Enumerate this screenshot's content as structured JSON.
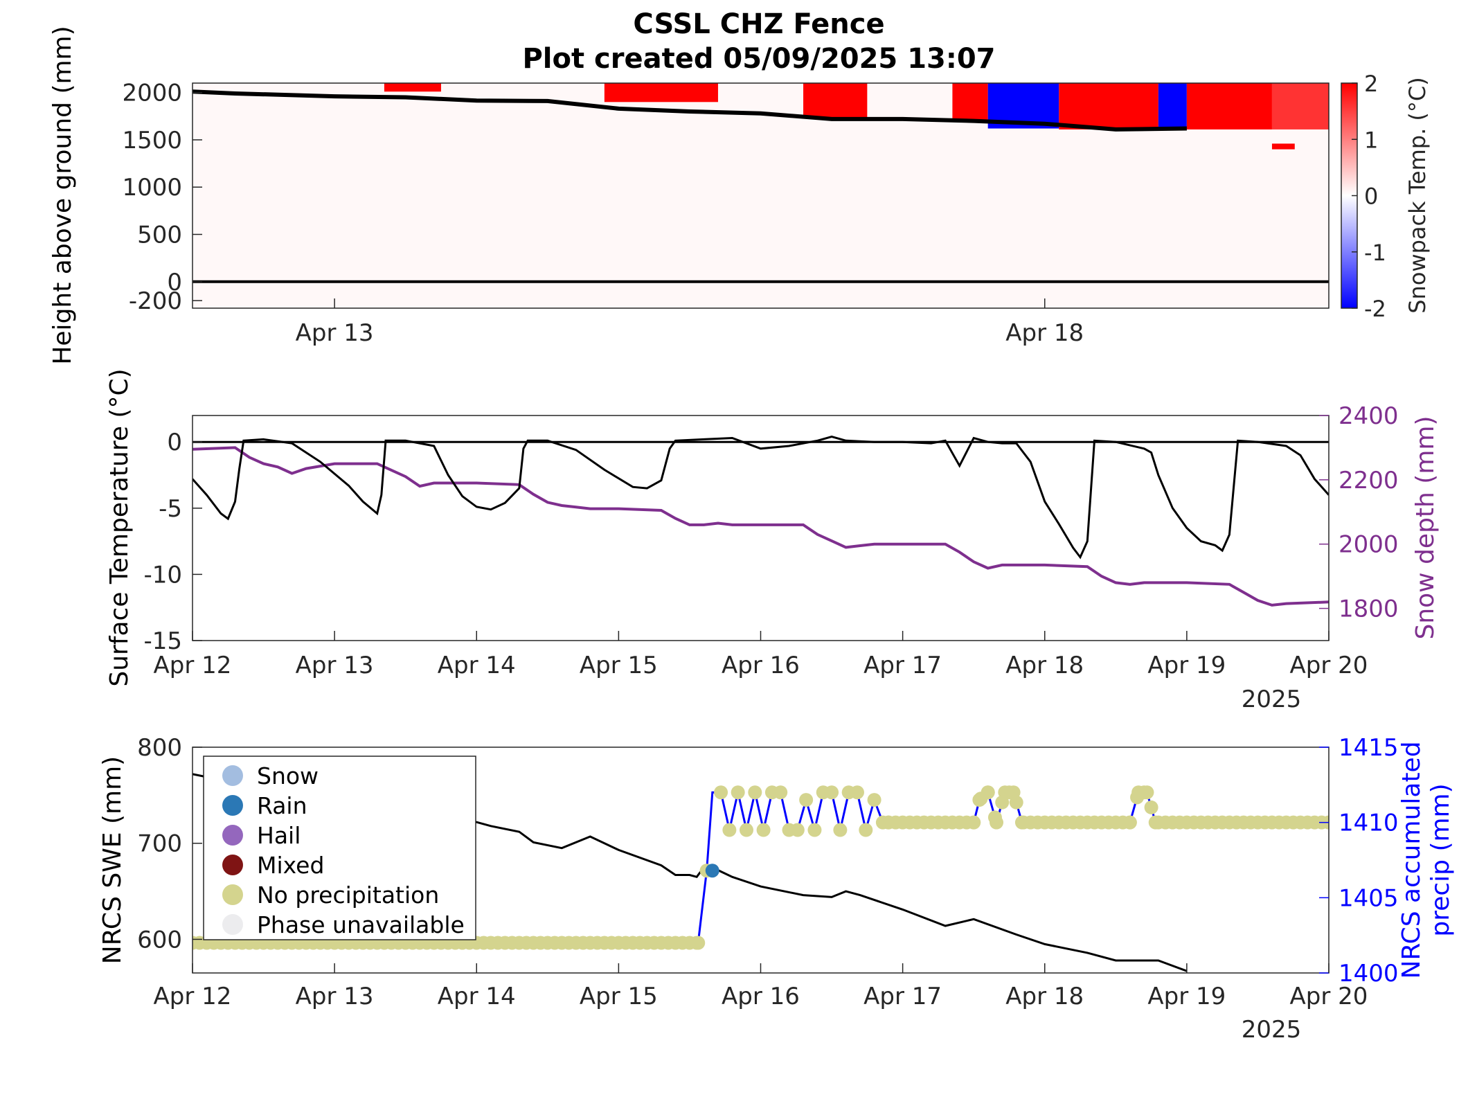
{
  "title": {
    "line1": "CSSL CHZ Fence",
    "line2": "Plot created 05/09/2025 13:07"
  },
  "colors": {
    "temp_line": "#000000",
    "snow_depth": "#7e2f8e",
    "precip_line": "#0000ff",
    "swe_line": "#000000",
    "cmap_warm": "#ff0000",
    "cmap_cold": "#0000ff",
    "cmap_zero": "#ffffff"
  },
  "chart_data": [
    {
      "type": "heatmap",
      "ylabel": "Height above ground (mm)",
      "ylim": [
        -280,
        2100
      ],
      "yticks": [
        2000,
        1500,
        1000,
        500,
        0,
        -200
      ],
      "xticks": [
        "Apr 13",
        "Apr 18"
      ],
      "xtick_days": [
        1,
        6
      ],
      "xlim_days": [
        0,
        8
      ],
      "colorbar": {
        "label": "Snowpack Temp. (°C)",
        "range": [
          -2,
          2
        ],
        "ticks": [
          "2",
          "1",
          "0",
          "-1",
          "-2"
        ]
      },
      "snow_surface_height": {
        "days": [
          0,
          0.3,
          1.0,
          1.5,
          2.0,
          2.5,
          3.0,
          3.5,
          4.0,
          4.5,
          5.0,
          5.5,
          6.0,
          6.5,
          7.0
        ],
        "values": [
          2010,
          1990,
          1960,
          1950,
          1915,
          1910,
          1830,
          1800,
          1780,
          1720,
          1720,
          1700,
          1670,
          1610,
          1620
        ]
      },
      "warm_layer_blocks": [
        {
          "day_start": 1.35,
          "day_end": 1.75,
          "z_top": 2100,
          "z_bottom": 2010,
          "temp": 2
        },
        {
          "day_start": 2.9,
          "day_end": 3.7,
          "z_top": 2100,
          "z_bottom": 1900,
          "temp": 2
        },
        {
          "day_start": 4.3,
          "day_end": 4.75,
          "z_top": 2100,
          "z_bottom": 1730,
          "temp": 2
        },
        {
          "day_start": 5.35,
          "day_end": 5.6,
          "z_top": 2100,
          "z_bottom": 1700,
          "temp": 2
        },
        {
          "day_start": 5.6,
          "day_end": 6.1,
          "z_top": 2100,
          "z_bottom": 1620,
          "temp": -2
        },
        {
          "day_start": 6.1,
          "day_end": 6.8,
          "z_top": 2100,
          "z_bottom": 1610,
          "temp": 2
        },
        {
          "day_start": 6.8,
          "day_end": 7.0,
          "z_top": 2100,
          "z_bottom": 1610,
          "temp": -2
        },
        {
          "day_start": 7.0,
          "day_end": 7.6,
          "z_top": 2100,
          "z_bottom": 1610,
          "temp": 2
        },
        {
          "day_start": 7.6,
          "day_end": 8.0,
          "z_top": 2100,
          "z_bottom": 1610,
          "temp": 1.6
        },
        {
          "day_start": 7.6,
          "day_end": 7.76,
          "z_top": 1460,
          "z_bottom": 1400,
          "temp": 2
        }
      ],
      "ground_line_height": 0
    },
    {
      "type": "line",
      "ylabel": "Surface Temperature (°C)",
      "ylabel_right": "Snow depth (mm)",
      "ylim": [
        -15,
        2
      ],
      "yticks": [
        0,
        -5,
        -10,
        -15
      ],
      "ylim_right": [
        1700,
        2400
      ],
      "yticks_right": [
        2400,
        2200,
        2000,
        1800
      ],
      "xticks": [
        "Apr 12",
        "Apr 13",
        "Apr 14",
        "Apr 15",
        "Apr 16",
        "Apr 17",
        "Apr 18",
        "Apr 19",
        "Apr 20"
      ],
      "year_label": "2025",
      "xlim_days": [
        0,
        8
      ],
      "zero_line": 0,
      "series": [
        {
          "axis": "left",
          "days": [
            0,
            0.1,
            0.2,
            0.25,
            0.3,
            0.33,
            0.36,
            0.5,
            0.7,
            0.9,
            1.1,
            1.2,
            1.3,
            1.33,
            1.36,
            1.5,
            1.7,
            1.8,
            1.9,
            2.0,
            2.1,
            2.2,
            2.3,
            2.33,
            2.36,
            2.5,
            2.7,
            2.9,
            3.1,
            3.2,
            3.3,
            3.36,
            3.4,
            3.6,
            3.8,
            4.0,
            4.2,
            4.4,
            4.5,
            4.6,
            4.8,
            5.0,
            5.2,
            5.3,
            5.4,
            5.5,
            5.6,
            5.7,
            5.8,
            5.9,
            6.0,
            6.1,
            6.2,
            6.25,
            6.3,
            6.35,
            6.5,
            6.7,
            6.75,
            6.8,
            6.9,
            7.0,
            7.1,
            7.2,
            7.25,
            7.3,
            7.36,
            7.5,
            7.7,
            7.8,
            7.9,
            8.0
          ],
          "values": [
            -2.8,
            -4.0,
            -5.4,
            -5.8,
            -4.5,
            -2.0,
            0.1,
            0.2,
            -0.1,
            -1.5,
            -3.3,
            -4.5,
            -5.4,
            -4.0,
            0.1,
            0.1,
            -0.3,
            -2.5,
            -4.1,
            -4.9,
            -5.1,
            -4.6,
            -3.5,
            -0.5,
            0.1,
            0.1,
            -0.6,
            -2.1,
            -3.4,
            -3.5,
            -2.9,
            -0.5,
            0.1,
            0.2,
            0.3,
            -0.5,
            -0.3,
            0.1,
            0.4,
            0.1,
            0.0,
            0.0,
            -0.1,
            0.1,
            -1.8,
            0.3,
            0.0,
            -0.1,
            -0.1,
            -1.5,
            -4.5,
            -6.2,
            -8.0,
            -8.7,
            -7.5,
            0.1,
            0.0,
            -0.5,
            -0.8,
            -2.5,
            -5.0,
            -6.5,
            -7.5,
            -7.8,
            -8.2,
            -7.0,
            0.1,
            0.0,
            -0.3,
            -1.0,
            -2.8,
            -4.0
          ]
        },
        {
          "axis": "right",
          "days": [
            0,
            0.3,
            0.4,
            0.5,
            0.6,
            0.7,
            0.8,
            1.0,
            1.3,
            1.4,
            1.5,
            1.6,
            1.7,
            1.8,
            2.0,
            2.3,
            2.4,
            2.5,
            2.6,
            2.7,
            2.8,
            3.0,
            3.3,
            3.4,
            3.5,
            3.6,
            3.7,
            3.8,
            4.0,
            4.3,
            4.4,
            4.5,
            4.6,
            4.7,
            4.8,
            5.0,
            5.3,
            5.4,
            5.5,
            5.6,
            5.7,
            5.8,
            6.0,
            6.3,
            6.4,
            6.5,
            6.6,
            6.7,
            6.8,
            7.0,
            7.3,
            7.4,
            7.5,
            7.6,
            7.7,
            8.0
          ],
          "values": [
            2295,
            2300,
            2270,
            2250,
            2240,
            2220,
            2235,
            2250,
            2250,
            2230,
            2210,
            2180,
            2190,
            2190,
            2190,
            2185,
            2155,
            2130,
            2120,
            2115,
            2110,
            2110,
            2105,
            2080,
            2060,
            2060,
            2065,
            2060,
            2060,
            2060,
            2030,
            2010,
            1990,
            1995,
            2000,
            2000,
            2000,
            1975,
            1945,
            1925,
            1935,
            1935,
            1935,
            1930,
            1900,
            1880,
            1875,
            1880,
            1880,
            1880,
            1875,
            1850,
            1825,
            1810,
            1815,
            1820
          ]
        }
      ]
    },
    {
      "type": "line",
      "ylabel": "NRCS SWE (mm)",
      "ylabel_right_lines": [
        "NRCS accumulated",
        "precip (mm)"
      ],
      "ylim": [
        565,
        800
      ],
      "yticks": [
        800,
        700,
        600
      ],
      "ylim_right": [
        1400,
        1415
      ],
      "yticks_right": [
        1415,
        1410,
        1405,
        1400
      ],
      "xticks": [
        "Apr 12",
        "Apr 13",
        "Apr 14",
        "Apr 15",
        "Apr 16",
        "Apr 17",
        "Apr 18",
        "Apr 19",
        "Apr 20"
      ],
      "year_label": "2025",
      "xlim_days": [
        0,
        8
      ],
      "legend": {
        "placement": "top-left",
        "entries": [
          {
            "label": "Snow",
            "color": "#a3bde0"
          },
          {
            "label": "Rain",
            "color": "#2b78b5"
          },
          {
            "label": "Hail",
            "color": "#9467bd"
          },
          {
            "label": "Mixed",
            "color": "#7f1414"
          },
          {
            "label": "No precipitation",
            "color": "#d4d48e"
          },
          {
            "label": "Phase unavailable",
            "color": "#ececee"
          }
        ]
      },
      "swe_series": {
        "axis": "left",
        "days": [
          0,
          0.1,
          0.3,
          0.5,
          0.8,
          1.0,
          1.5,
          2.0,
          2.1,
          2.3,
          2.4,
          2.6,
          2.8,
          3.0,
          3.3,
          3.4,
          3.5,
          3.55,
          3.6,
          3.7,
          3.8,
          4.0,
          4.3,
          4.5,
          4.6,
          4.7,
          5.0,
          5.3,
          5.5,
          5.8,
          6.0,
          6.3,
          6.5,
          6.8,
          7.0
        ],
        "values": [
          772,
          769,
          762,
          755,
          748,
          740,
          735,
          722,
          718,
          712,
          701,
          695,
          707,
          693,
          677,
          667,
          667,
          665,
          675,
          672,
          665,
          655,
          646,
          644,
          650,
          646,
          631,
          614,
          621,
          605,
          595,
          586,
          578,
          578,
          567
        ]
      },
      "precip_series": {
        "axis": "right",
        "days": [
          0,
          3.56,
          3.62,
          3.66,
          3.72,
          3.78,
          3.84,
          3.9,
          3.96,
          4.02,
          4.08,
          4.14,
          4.2,
          4.26,
          4.32,
          4.38,
          4.44,
          4.5,
          4.56,
          4.62,
          4.68,
          4.74,
          4.8,
          4.86,
          4.9,
          5.5,
          5.54,
          5.6,
          5.66,
          5.72,
          5.78,
          5.84,
          6.6,
          6.66,
          6.72,
          6.78,
          8.0
        ],
        "values": [
          1402,
          1402,
          1406.8,
          1412,
          1412,
          1409.5,
          1412,
          1409.5,
          1412,
          1409.5,
          1412,
          1412,
          1409.5,
          1409.5,
          1411.5,
          1409.5,
          1412,
          1412,
          1409.5,
          1412,
          1412,
          1409.5,
          1411.5,
          1410,
          1410,
          1410,
          1411.5,
          1412,
          1410,
          1412,
          1412,
          1410,
          1410,
          1412,
          1412,
          1410,
          1410
        ]
      },
      "phase_markers": [
        {
          "day": 3.66,
          "value": 1406.8,
          "phase": "Rain"
        }
      ],
      "no_precip_marker_default": "No precipitation"
    }
  ]
}
